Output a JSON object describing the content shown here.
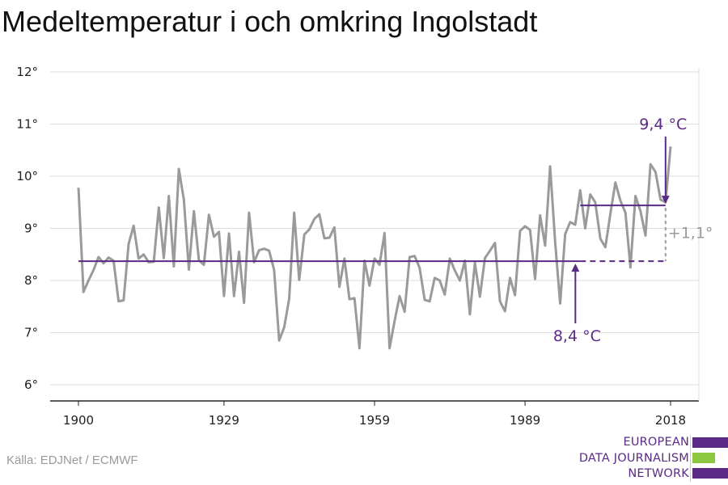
{
  "title": "Medeltemperatur i och omkring Ingolstadt",
  "source": "Källa: EDJNet / ECMWF",
  "logo": {
    "lines": [
      "EUROPEAN",
      "DATA JOURNALISM",
      "NETWORK"
    ]
  },
  "colors": {
    "series": "#9a9a9a",
    "baseline": "#5b2a86",
    "recent": "#5b2a86",
    "grid": "#dddddd",
    "axis": "#222222"
  },
  "chart_data": {
    "type": "line",
    "title": "Medeltemperatur i och omkring Ingolstadt",
    "xlabel": "",
    "ylabel": "",
    "xlim": [
      1900,
      2018
    ],
    "ylim": [
      6,
      12
    ],
    "yticks": [
      6,
      7,
      8,
      9,
      10,
      11,
      12
    ],
    "ytick_labels": [
      "6°",
      "7°",
      "8°",
      "9°",
      "10°",
      "11°",
      "12°"
    ],
    "xticks": [
      1900,
      1929,
      1959,
      1989,
      2018
    ],
    "xtick_labels": [
      "1900",
      "1929",
      "1959",
      "1989",
      "2018"
    ],
    "grid": true,
    "series": [
      {
        "name": "",
        "x": [
          1900,
          1901,
          1902,
          1903,
          1904,
          1905,
          1906,
          1907,
          1908,
          1909,
          1910,
          1911,
          1912,
          1913,
          1914,
          1915,
          1916,
          1917,
          1918,
          1919,
          1920,
          1921,
          1922,
          1923,
          1924,
          1925,
          1926,
          1927,
          1928,
          1929,
          1930,
          1931,
          1932,
          1933,
          1934,
          1935,
          1936,
          1937,
          1938,
          1939,
          1940,
          1941,
          1942,
          1943,
          1944,
          1945,
          1946,
          1947,
          1948,
          1949,
          1950,
          1951,
          1952,
          1953,
          1954,
          1955,
          1956,
          1957,
          1958,
          1959,
          1960,
          1961,
          1962,
          1963,
          1964,
          1965,
          1966,
          1967,
          1968,
          1969,
          1970,
          1971,
          1972,
          1973,
          1974,
          1975,
          1976,
          1977,
          1978,
          1979,
          1980,
          1981,
          1982,
          1983,
          1984,
          1985,
          1986,
          1987,
          1988,
          1989,
          1990,
          1991,
          1992,
          1993,
          1994,
          1995,
          1996,
          1997,
          1998,
          1999,
          2000,
          2001,
          2002,
          2003,
          2004,
          2005,
          2006,
          2007,
          2008,
          2009,
          2010,
          2011,
          2012,
          2013,
          2014,
          2015,
          2016,
          2017,
          2018
        ],
        "values": [
          9.78,
          7.78,
          8.0,
          8.2,
          8.45,
          8.33,
          8.44,
          8.38,
          7.6,
          7.62,
          8.7,
          9.05,
          8.42,
          8.5,
          8.35,
          8.36,
          9.4,
          8.43,
          9.62,
          8.27,
          10.14,
          9.55,
          8.21,
          9.33,
          8.39,
          8.3,
          9.26,
          8.84,
          8.93,
          7.7,
          8.9,
          7.7,
          8.55,
          7.57,
          9.3,
          8.35,
          8.58,
          8.61,
          8.57,
          8.2,
          6.85,
          7.1,
          7.65,
          9.3,
          8.01,
          8.88,
          8.98,
          9.18,
          9.27,
          8.81,
          8.82,
          9.02,
          7.88,
          8.42,
          7.64,
          7.66,
          6.7,
          8.38,
          7.9,
          8.42,
          8.3,
          8.91,
          6.7,
          7.22,
          7.7,
          7.4,
          8.45,
          8.47,
          8.24,
          7.63,
          7.6,
          8.05,
          8.0,
          7.73,
          8.42,
          8.19,
          8.0,
          8.38,
          7.35,
          8.34,
          7.69,
          8.43,
          8.57,
          8.72,
          7.6,
          7.41,
          8.05,
          7.72,
          8.95,
          9.04,
          8.97,
          8.03,
          9.25,
          8.67,
          10.19,
          8.74,
          7.56,
          8.89,
          9.12,
          9.07,
          9.73,
          9.0,
          9.65,
          9.5,
          8.8,
          8.64,
          9.28,
          9.88,
          9.53,
          9.3,
          8.25,
          9.62,
          9.33,
          8.86,
          10.23,
          10.08,
          9.55,
          9.5,
          10.57
        ]
      }
    ],
    "reference_lines": [
      {
        "label": "8,4 °C",
        "value": 8.37,
        "x_start": 1900,
        "x_solid_end": 2000,
        "x_dashed_end": 2017
      },
      {
        "label": "9,4 °C",
        "value": 9.44,
        "x_start": 2000,
        "x_end": 2017
      }
    ],
    "difference_label": "+1,1°"
  }
}
